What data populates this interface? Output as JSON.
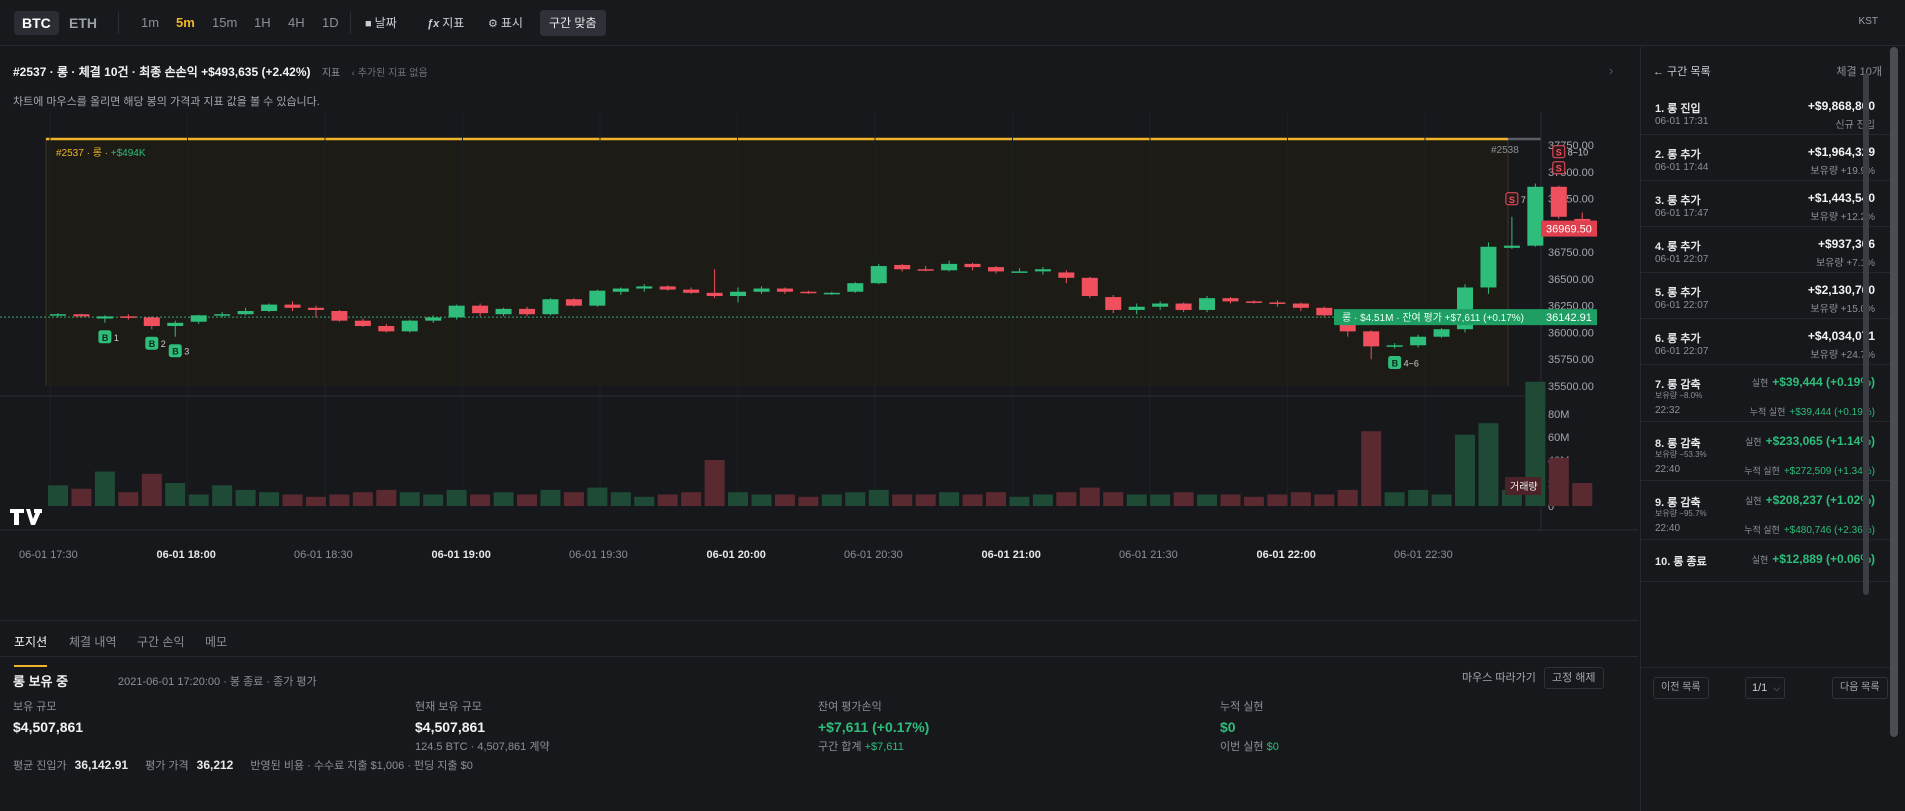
{
  "topbar": {
    "symbols": [
      "BTC",
      "ETH"
    ],
    "timeframes": [
      "1m",
      "5m",
      "15m",
      "1H",
      "4H",
      "1D"
    ],
    "active_timeframe": "5m",
    "tools": {
      "date": "날짜",
      "indicator": "지표",
      "display": "표시"
    },
    "fit_label": "구간 맞춤",
    "timezone": "KST"
  },
  "chart_header": {
    "title": "#2537 · 롱 · 체결 10건 · 최종 손손익 +$493,635 (+2.42%)",
    "indicator_label": "지표",
    "no_indicator": "추가된 지표 없음",
    "hint": "차트에 마우스를 올리면 해당 봉의 가격과 지표 값을 볼 수 있습니다."
  },
  "chart_data": {
    "type": "candlestick",
    "symbol": "BTC",
    "interval": "5m",
    "y_ticks": [
      "37750.00",
      "37500.00",
      "37250.00",
      "37000.00",
      "36750.00",
      "36500.00",
      "36250.00",
      "36000.00",
      "35750.00",
      "35500.00"
    ],
    "ylim": [
      35500,
      37750
    ],
    "volume_ticks": [
      "80M",
      "60M",
      "40M",
      "20M",
      "0"
    ],
    "volume_label": "거래량",
    "x_ticks": [
      {
        "label": "06-01 17:30",
        "bold": false
      },
      {
        "label": "06-01 18:00",
        "bold": true
      },
      {
        "label": "06-01 18:30",
        "bold": false
      },
      {
        "label": "06-01 19:00",
        "bold": true
      },
      {
        "label": "06-01 19:30",
        "bold": false
      },
      {
        "label": "06-01 20:00",
        "bold": true
      },
      {
        "label": "06-01 20:30",
        "bold": false
      },
      {
        "label": "06-01 21:00",
        "bold": true
      },
      {
        "label": "06-01 21:30",
        "bold": false
      },
      {
        "label": "06-01 22:00",
        "bold": true
      },
      {
        "label": "06-01 22:30",
        "bold": false
      }
    ],
    "current_price": "36969.50",
    "avg_entry_price": "36142.91",
    "avg_line_label": "롱 · $4.51M · 잔여 평가 +$7,611 (+0.17%)",
    "segment_label": "#2537 · 롱 · ",
    "segment_pnl": "+$494K",
    "next_segment_label": "#2538",
    "markers": [
      {
        "side": "B",
        "label": "1",
        "bar": 2
      },
      {
        "side": "B",
        "label": "2",
        "bar": 4
      },
      {
        "side": "B",
        "label": "3",
        "bar": 5
      },
      {
        "side": "B",
        "label": "4~6",
        "bar": 57
      },
      {
        "side": "S",
        "label": "7",
        "bar": 62
      },
      {
        "side": "S",
        "label": "",
        "bar": 64
      },
      {
        "side": "S",
        "label": "8~10",
        "bar": 64
      }
    ],
    "candles": [
      [
        36160,
        36180,
        36140,
        36170,
        18
      ],
      [
        36170,
        36175,
        36140,
        36150,
        15
      ],
      [
        36130,
        36160,
        36090,
        36150,
        30
      ],
      [
        36150,
        36170,
        36120,
        36140,
        12
      ],
      [
        36140,
        36150,
        36030,
        36060,
        28
      ],
      [
        36060,
        36110,
        35960,
        36090,
        20
      ],
      [
        36100,
        36165,
        36080,
        36160,
        10
      ],
      [
        36160,
        36190,
        36140,
        36170,
        18
      ],
      [
        36170,
        36230,
        36160,
        36200,
        14
      ],
      [
        36200,
        36270,
        36190,
        36260,
        12
      ],
      [
        36260,
        36290,
        36200,
        36230,
        10
      ],
      [
        36230,
        36250,
        36140,
        36210,
        8
      ],
      [
        36200,
        36210,
        36100,
        36110,
        10
      ],
      [
        36110,
        36130,
        36050,
        36060,
        12
      ],
      [
        36060,
        36080,
        36000,
        36010,
        14
      ],
      [
        36010,
        36120,
        36000,
        36110,
        12
      ],
      [
        36110,
        36160,
        36090,
        36140,
        10
      ],
      [
        36140,
        36260,
        36120,
        36250,
        14
      ],
      [
        36250,
        36270,
        36150,
        36180,
        10
      ],
      [
        36170,
        36230,
        36150,
        36220,
        12
      ],
      [
        36220,
        36240,
        36150,
        36170,
        10
      ],
      [
        36170,
        36320,
        36160,
        36310,
        14
      ],
      [
        36310,
        36320,
        36240,
        36250,
        12
      ],
      [
        36250,
        36400,
        36240,
        36390,
        16
      ],
      [
        36380,
        36420,
        36350,
        36410,
        12
      ],
      [
        36410,
        36450,
        36380,
        36430,
        8
      ],
      [
        36430,
        36440,
        36390,
        36400,
        10
      ],
      [
        36400,
        36420,
        36360,
        36370,
        12
      ],
      [
        36370,
        36590,
        36320,
        36340,
        40
      ],
      [
        36340,
        36420,
        36280,
        36380,
        12
      ],
      [
        36380,
        36430,
        36360,
        36410,
        10
      ],
      [
        36410,
        36420,
        36360,
        36380,
        10
      ],
      [
        36380,
        36390,
        36360,
        36370,
        8
      ],
      [
        36370,
        36380,
        36350,
        36370,
        10
      ],
      [
        36380,
        36470,
        36370,
        36460,
        12
      ],
      [
        36460,
        36640,
        36450,
        36620,
        14
      ],
      [
        36630,
        36640,
        36570,
        36590,
        10
      ],
      [
        36590,
        36620,
        36570,
        36580,
        10
      ],
      [
        36580,
        36670,
        36570,
        36640,
        12
      ],
      [
        36640,
        36650,
        36580,
        36610,
        10
      ],
      [
        36610,
        36620,
        36550,
        36570,
        12
      ],
      [
        36570,
        36600,
        36560,
        36570,
        8
      ],
      [
        36570,
        36610,
        36540,
        36590,
        10
      ],
      [
        36560,
        36580,
        36460,
        36510,
        12
      ],
      [
        36510,
        36520,
        36320,
        36340,
        16
      ],
      [
        36330,
        36350,
        36180,
        36210,
        12
      ],
      [
        36210,
        36270,
        36170,
        36240,
        10
      ],
      [
        36240,
        36290,
        36210,
        36270,
        10
      ],
      [
        36270,
        36280,
        36190,
        36210,
        12
      ],
      [
        36210,
        36340,
        36190,
        36320,
        10
      ],
      [
        36320,
        36330,
        36270,
        36290,
        10
      ],
      [
        36290,
        36300,
        36270,
        36280,
        8
      ],
      [
        36280,
        36300,
        36240,
        36270,
        10
      ],
      [
        36270,
        36280,
        36200,
        36230,
        12
      ],
      [
        36230,
        36240,
        36150,
        36160,
        10
      ],
      [
        36160,
        36170,
        35960,
        36010,
        14
      ],
      [
        36010,
        36020,
        35750,
        35870,
        65
      ],
      [
        35870,
        35900,
        35850,
        35880,
        12
      ],
      [
        35880,
        35980,
        35860,
        35960,
        14
      ],
      [
        35960,
        36040,
        35950,
        36030,
        10
      ],
      [
        36030,
        36450,
        36000,
        36420,
        62
      ],
      [
        36420,
        36840,
        36360,
        36800,
        72
      ],
      [
        36790,
        37080,
        36780,
        36810,
        14
      ],
      [
        36810,
        37390,
        36800,
        37360,
        108
      ],
      [
        37360,
        37370,
        37060,
        37080,
        42
      ],
      [
        37060,
        37120,
        36980,
        36990,
        20
      ]
    ]
  },
  "bottom": {
    "tabs": [
      "포지션",
      "체결 내역",
      "구간 손익",
      "메모"
    ],
    "position_title": "롱 보유 중",
    "position_meta": "2021-06-01 17:20:00 · 봉 종료 · 종가 평가",
    "follow_label": "마우스 따라가기",
    "fix_label": "고정 해제",
    "stats": [
      {
        "label": "보유 규모",
        "value": "$4,507,861",
        "sub": ""
      },
      {
        "label": "현재 보유 규모",
        "value": "$4,507,861",
        "sub": "124.5 BTC · 4,507,861 계약"
      },
      {
        "label": "잔여 평가손익",
        "value": "+$7,611 (+0.17%)",
        "sub": "구간 합계 ",
        "sub_value": "+$7,611"
      },
      {
        "label": "누적 실현",
        "value": "$0",
        "sub": "이번 실현 ",
        "sub_value": "$0"
      }
    ],
    "summary": {
      "avg_entry_label": "평균 진입가",
      "avg_entry": "36,142.91",
      "eval_price_label": "평가 가격",
      "eval_price": "36,212",
      "costs": "반영된 비용 · 수수료 지출 $1,006 · 펀딩 지출 $0"
    }
  },
  "right_panel": {
    "back_label": "← 구간 목록",
    "count_label": "체결 10개",
    "items": [
      {
        "title": "1. 롱 진입",
        "amount": "+$9,868,800",
        "time": "06-01 17:31",
        "sub": "신규 진입",
        "kind": "entry"
      },
      {
        "title": "2. 롱 추가",
        "amount": "+$1,964,329",
        "time": "06-01 17:44",
        "sub": "보유량 +19.9%",
        "kind": "entry"
      },
      {
        "title": "3. 롱 추가",
        "amount": "+$1,443,540",
        "time": "06-01 17:47",
        "sub": "보유량 +12.2%",
        "kind": "entry"
      },
      {
        "title": "4. 롱 추가",
        "amount": "+$937,306",
        "time": "06-01 22:07",
        "sub": "보유량 +7.1%",
        "kind": "entry"
      },
      {
        "title": "5. 롱 추가",
        "amount": "+$2,130,760",
        "time": "06-01 22:07",
        "sub": "보유량 +15.0%",
        "kind": "entry"
      },
      {
        "title": "6. 롱 추가",
        "amount": "+$4,034,071",
        "time": "06-01 22:07",
        "sub": "보유량 +24.7%",
        "kind": "entry"
      },
      {
        "title": "7. 롱 감축",
        "realized_label": "실현",
        "amount": "+$39,444 (+0.19%)",
        "note": "보유량 −8.0%",
        "time": "22:32",
        "cum_label": "누적 실현",
        "cum": "+$39,444 (+0.19%)",
        "kind": "exit"
      },
      {
        "title": "8. 롱 감축",
        "realized_label": "실현",
        "amount": "+$233,065 (+1.14%)",
        "note": "보유량 −53.3%",
        "time": "22:40",
        "cum_label": "누적 실현",
        "cum": "+$272,509 (+1.34%)",
        "kind": "exit"
      },
      {
        "title": "9. 롱 감축",
        "realized_label": "실현",
        "amount": "+$208,237 (+1.02%)",
        "note": "보유량 −95.7%",
        "time": "22:40",
        "cum_label": "누적 실현",
        "cum": "+$480,746 (+2.36%)",
        "kind": "exit"
      },
      {
        "title": "10. 롱 종료",
        "realized_label": "실현",
        "amount": "+$12,889 (+0.06%)",
        "kind": "exit-last"
      }
    ],
    "prev_label": "이전 목록",
    "page_label": "1/1",
    "next_label": "다음 목록"
  },
  "colors": {
    "up": "#2ebd7a",
    "down": "#f0505e",
    "accent": "#f0b429",
    "bg": "#16181c"
  }
}
